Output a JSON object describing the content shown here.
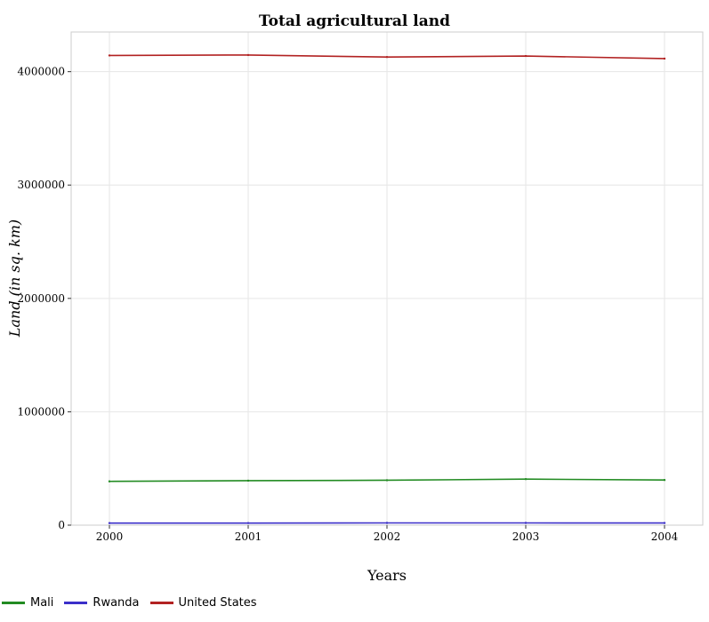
{
  "chart_data": {
    "type": "line",
    "title": "Total agricultural land",
    "xlabel": "Years",
    "ylabel": "Land (in sq. km)",
    "categories": [
      "2000",
      "2001",
      "2002",
      "2003",
      "2004"
    ],
    "ylim": [
      0,
      4350000
    ],
    "yticks": [
      0,
      1000000,
      2000000,
      3000000,
      4000000
    ],
    "ytick_labels": [
      "0",
      "1000000",
      "2000000",
      "3000000",
      "4000000"
    ],
    "grid": true,
    "legend_position": "bottom-left",
    "series": [
      {
        "name": "Mali",
        "color": "#228B22",
        "values": [
          386000,
          392000,
          396000,
          406000,
          398000
        ]
      },
      {
        "name": "Rwanda",
        "color": "#3B2FC9",
        "values": [
          18000,
          18500,
          19500,
          19500,
          19000
        ]
      },
      {
        "name": "United States",
        "color": "#B22222",
        "values": [
          4143000,
          4147000,
          4129000,
          4138000,
          4115000
        ]
      }
    ]
  }
}
